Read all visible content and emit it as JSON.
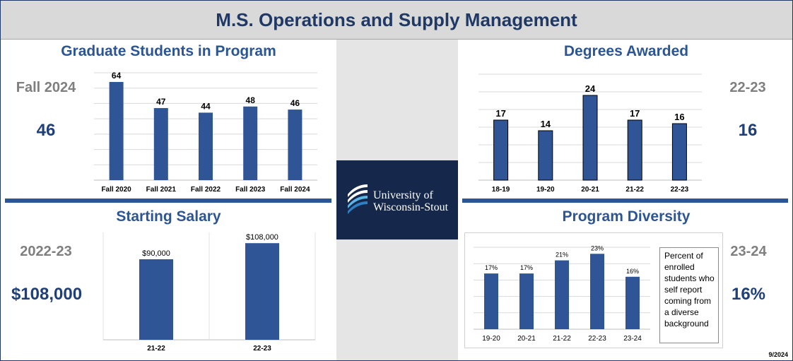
{
  "header": {
    "title": "M.S. Operations and Supply Management"
  },
  "logo": {
    "line1": "University of",
    "line2": "Wisconsin-Stout"
  },
  "panels": {
    "students": {
      "title": "Graduate Students in Program",
      "kpi_label": "Fall 2024",
      "kpi_value": "46"
    },
    "degrees": {
      "title": "Degrees Awarded",
      "kpi_label": "22-23",
      "kpi_value": "16"
    },
    "salary": {
      "title": "Starting Salary",
      "kpi_label": "2022-23",
      "kpi_value": "$108,000"
    },
    "diversity": {
      "title": "Program Diversity",
      "kpi_label": "23-24",
      "kpi_value": "16%",
      "note": "Percent of enrolled students who self report coming from a diverse background"
    }
  },
  "date_stamp": "9/2024",
  "colors": {
    "bar": "#2f5597",
    "title": "#2b5594",
    "kpi_value": "#1f3f7a",
    "kpi_label": "#7f7f7f",
    "header_bg": "#d9d9d9",
    "logo_bg": "#15284b"
  },
  "chart_data": [
    {
      "id": "students",
      "type": "bar",
      "categories": [
        "Fall 2020",
        "Fall 2021",
        "Fall 2022",
        "Fall 2023",
        "Fall 2024"
      ],
      "values": [
        64,
        47,
        44,
        48,
        46
      ],
      "labels": [
        "64",
        "47",
        "44",
        "48",
        "46"
      ],
      "ylim": [
        0,
        70
      ],
      "grid": true
    },
    {
      "id": "degrees",
      "type": "bar",
      "categories": [
        "18-19",
        "19-20",
        "20-21",
        "21-22",
        "22-23"
      ],
      "values": [
        17,
        14,
        24,
        17,
        16
      ],
      "labels": [
        "17",
        "14",
        "24",
        "17",
        "16"
      ],
      "ylim": [
        0,
        30
      ],
      "grid": true
    },
    {
      "id": "salary",
      "type": "bar",
      "categories": [
        "21-22",
        "22-23"
      ],
      "values": [
        90000,
        108000
      ],
      "labels": [
        "$90,000",
        "$108,000"
      ],
      "ylim": [
        0,
        120000
      ],
      "grid": false
    },
    {
      "id": "diversity",
      "type": "bar",
      "categories": [
        "19-20",
        "20-21",
        "21-22",
        "22-23",
        "23-24"
      ],
      "values": [
        17,
        17,
        21,
        23,
        16
      ],
      "labels": [
        "17%",
        "17%",
        "21%",
        "23%",
        "16%"
      ],
      "ylim": [
        0,
        25
      ],
      "grid": true
    }
  ]
}
